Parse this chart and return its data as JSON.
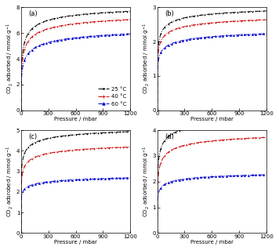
{
  "panels": [
    {
      "label": "(a)",
      "ylim": [
        0,
        8
      ],
      "yticks": [
        0,
        2,
        4,
        6,
        8
      ],
      "show_legend": true,
      "ylabel": "CO$_2$ adsorbed / mmol g$^{-1}$",
      "curves": {
        "25": {
          "q": 8.5,
          "b": 0.065,
          "n": 0.52
        },
        "40": {
          "q": 8.0,
          "b": 0.055,
          "n": 0.48
        },
        "60": {
          "q": 7.0,
          "b": 0.042,
          "n": 0.44
        }
      }
    },
    {
      "label": "(b)",
      "ylim": [
        0,
        3
      ],
      "yticks": [
        0,
        1,
        2,
        3
      ],
      "show_legend": false,
      "ylabel": "CO$_2$ adsorbed / mmol g$^{-1}$",
      "curves": {
        "25": {
          "q": 3.2,
          "b": 0.18,
          "n": 0.42
        },
        "40": {
          "q": 3.0,
          "b": 0.16,
          "n": 0.38
        },
        "60": {
          "q": 2.6,
          "b": 0.14,
          "n": 0.35
        }
      }
    },
    {
      "label": "(c)",
      "ylim": [
        0,
        5
      ],
      "yticks": [
        0,
        1,
        2,
        3,
        4,
        5
      ],
      "show_legend": false,
      "ylabel": "CO$_2$ adsrobed / mmol g$^{-1}$",
      "curves": {
        "25": {
          "q": 5.5,
          "b": 0.25,
          "n": 0.38
        },
        "40": {
          "q": 4.8,
          "b": 0.2,
          "n": 0.35
        },
        "60": {
          "q": 3.2,
          "b": 0.3,
          "n": 0.28
        }
      }
    },
    {
      "label": "(d)",
      "ylim": [
        0,
        4
      ],
      "yticks": [
        0,
        1,
        2,
        3,
        4
      ],
      "show_legend": false,
      "ylabel": "CO$_2$ adsorbed / mmol g$^{-1}$",
      "curves": {
        "25": {
          "q": 4.8,
          "b": 0.14,
          "n": 0.45
        },
        "40": {
          "q": 4.2,
          "b": 0.11,
          "n": 0.42
        },
        "60": {
          "q": 2.6,
          "b": 0.2,
          "n": 0.35
        }
      }
    }
  ],
  "temperatures": [
    "25",
    "40",
    "60"
  ],
  "colors": {
    "25": "#000000",
    "40": "#cc0000",
    "60": "#0000cc"
  },
  "markers": {
    "25": ".",
    "40": "+",
    "60": "^"
  },
  "markersizes": {
    "25": 1.5,
    "40": 1.8,
    "60": 1.5
  },
  "markevery": 20,
  "legend_labels": {
    "25": "25 °C",
    "40": "40 °C",
    "60": "60 °C"
  },
  "xlabel": "Pressure / mbar",
  "xlim": [
    0,
    1200
  ],
  "xticks": [
    0,
    300,
    600,
    900,
    1200
  ],
  "bg_color": "#ffffff",
  "tick_fontsize": 5.0,
  "label_fontsize": 5.0,
  "legend_fontsize": 5.0,
  "linewidth": 0.7,
  "panel_label_fontsize": 6.0
}
